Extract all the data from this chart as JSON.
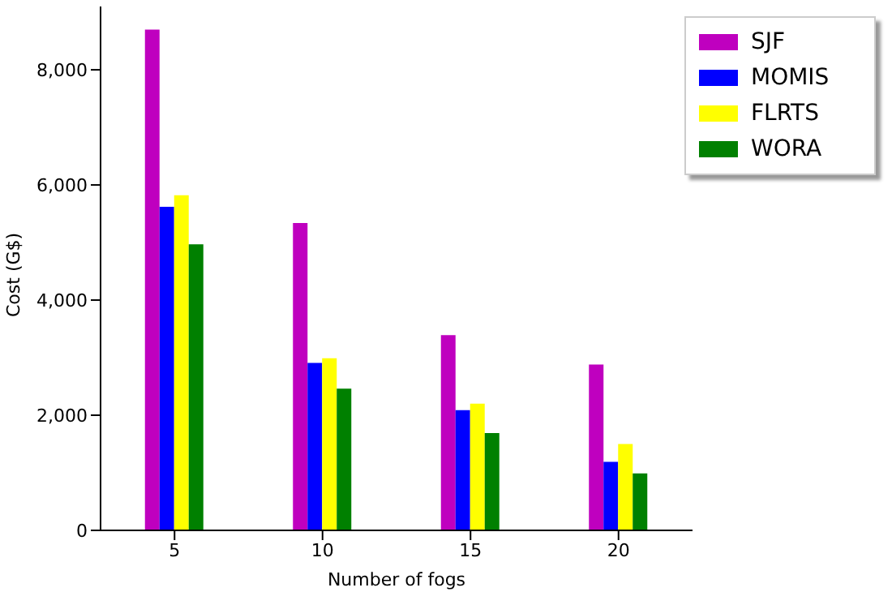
{
  "chart_data": {
    "type": "bar",
    "xlabel": "Number of fogs",
    "ylabel": "Cost (G$)",
    "categories": [
      "5",
      "10",
      "15",
      "20"
    ],
    "series": [
      {
        "name": "SJF",
        "color": "#bf00bf",
        "values": [
          8700,
          5340,
          3390,
          2880
        ]
      },
      {
        "name": "MOMIS",
        "color": "#0000ff",
        "values": [
          5620,
          2910,
          2090,
          1190
        ]
      },
      {
        "name": "FLRTS",
        "color": "#ffff00",
        "values": [
          5820,
          2990,
          2200,
          1500
        ]
      },
      {
        "name": "WORA",
        "color": "#008000",
        "values": [
          4970,
          2460,
          1690,
          990
        ]
      }
    ],
    "ylim": [
      0,
      9100
    ],
    "yticks": [
      {
        "value": 0,
        "label": "0"
      },
      {
        "value": 2000,
        "label": "2,000"
      },
      {
        "value": 4000,
        "label": "4,000"
      },
      {
        "value": 6000,
        "label": "6,000"
      },
      {
        "value": 8000,
        "label": "8,000"
      }
    ],
    "grid": false,
    "legend": "top right"
  }
}
